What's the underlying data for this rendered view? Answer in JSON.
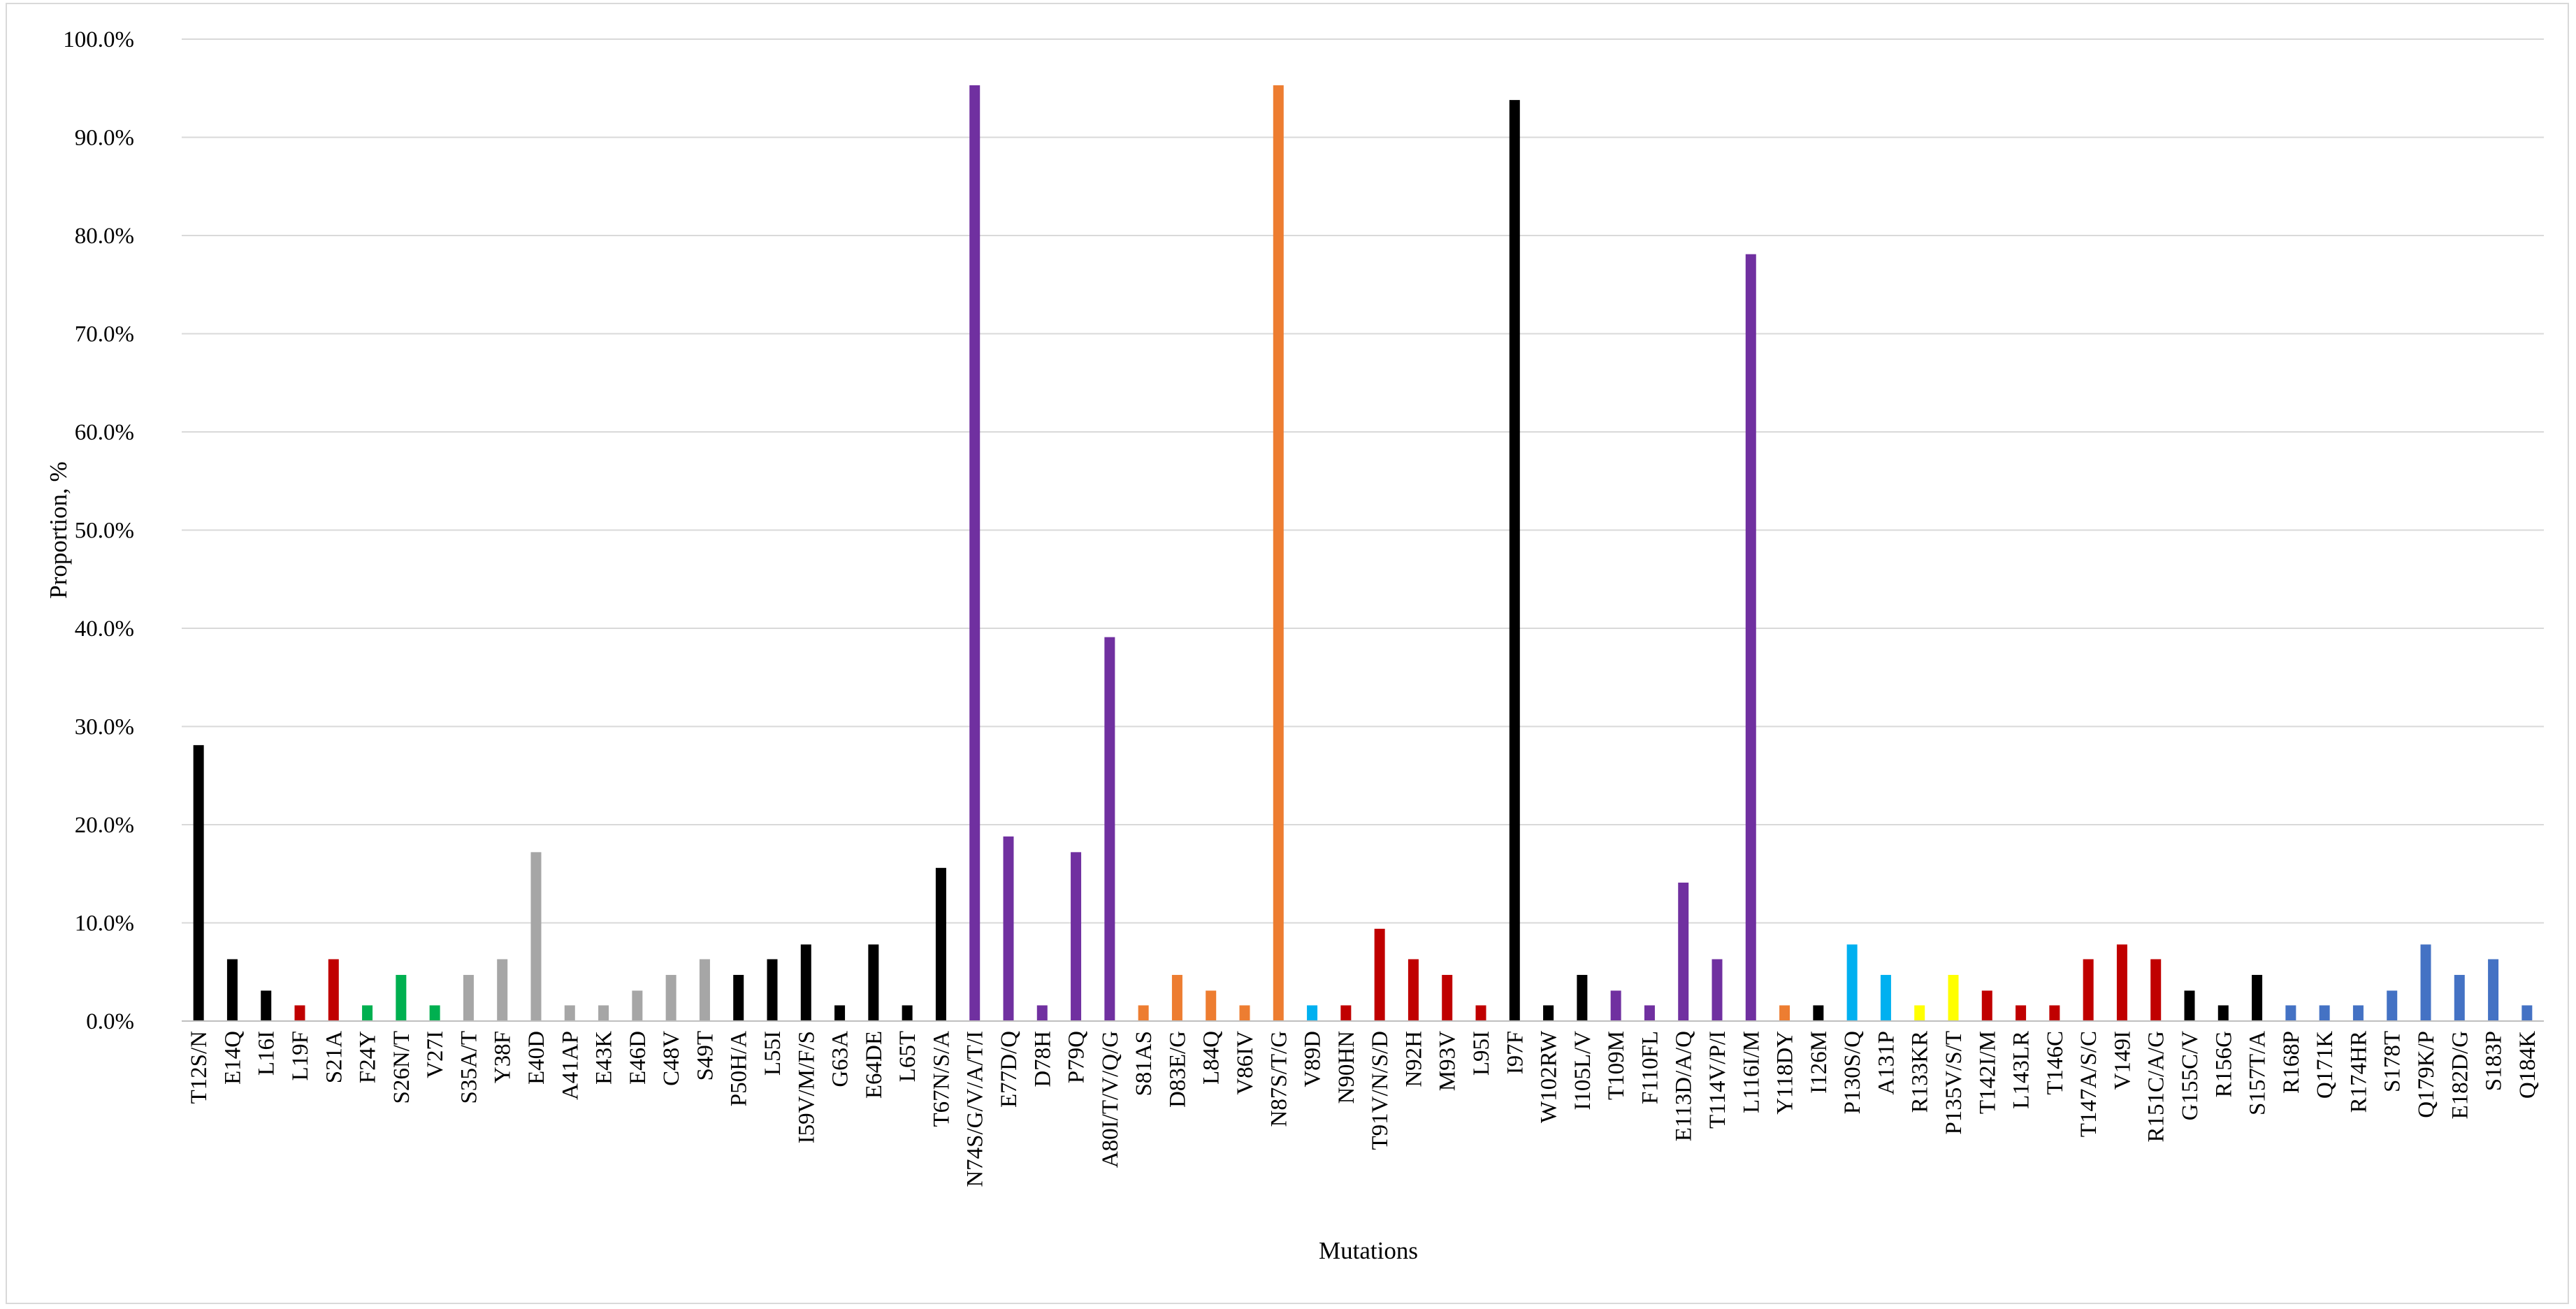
{
  "chart_data": {
    "type": "bar",
    "xlabel": "Mutations",
    "ylabel": "Proportion, %",
    "ylim": [
      0,
      100
    ],
    "y_ticks": [
      "0.0%",
      "10.0%",
      "20.0%",
      "30.0%",
      "40.0%",
      "50.0%",
      "60.0%",
      "70.0%",
      "80.0%",
      "90.0%",
      "100.0%"
    ],
    "grid": true,
    "legend": "none",
    "colors": {
      "black": "#000000",
      "red": "#c00000",
      "green": "#00b050",
      "gray": "#a6a6a6",
      "purple": "#7030a0",
      "orange": "#ed7d31",
      "cyan": "#00b0f0",
      "yellow": "#ffff00",
      "blue": "#4472c4"
    },
    "categories": [
      "T12S/N",
      "E14Q",
      "L16I",
      "L19F",
      "S21A",
      "F24Y",
      "S26N/T",
      "V27I",
      "S35A/T",
      "Y38F",
      "E40D",
      "A41AP",
      "E43K",
      "E46D",
      "C48V",
      "S49T",
      "P50H/A",
      "L55I",
      "I59V/M/F/S",
      "G63A",
      "E64DE",
      "L65T",
      "T67N/S/A",
      "N74S/G/V/A/T/I",
      "E77D/Q",
      "D78H",
      "P79Q",
      "A80I/T/V/Q/G",
      "S81AS",
      "D83E/G",
      "L84Q",
      "V86IV",
      "N87S/T/G",
      "V89D",
      "N90HN",
      "T91V/N/S/D",
      "N92H",
      "M93V",
      "L95I",
      "I97F",
      "W102RW",
      "I105L/V",
      "T109M",
      "F110FL",
      "E113D/A/Q",
      "T114V/P/I",
      "L116I/M",
      "Y118DY",
      "I126M",
      "P130S/Q",
      "A131P",
      "R133KR",
      "P135V/S/T",
      "T142I/M",
      "L143LR",
      "T146C",
      "T147A/S/C",
      "V149I",
      "R151C/A/G",
      "G155C/V",
      "R156G",
      "S157T/A",
      "R168P",
      "Q171K",
      "R174HR",
      "S178T",
      "Q179K/P",
      "E182D/G",
      "S183P",
      "Q184K"
    ],
    "values": [
      28.1,
      6.3,
      3.1,
      1.6,
      6.3,
      1.6,
      4.7,
      1.6,
      4.7,
      6.3,
      17.2,
      1.6,
      1.6,
      3.1,
      4.7,
      6.3,
      4.7,
      6.3,
      7.8,
      1.6,
      7.8,
      1.6,
      15.6,
      95.3,
      18.8,
      1.6,
      17.2,
      39.1,
      1.6,
      4.7,
      3.1,
      1.6,
      95.3,
      1.6,
      1.6,
      9.4,
      6.3,
      4.7,
      1.6,
      93.8,
      1.6,
      4.7,
      3.1,
      1.6,
      14.1,
      6.3,
      78.1,
      1.6,
      1.6,
      7.8,
      4.7,
      1.6,
      4.7,
      3.1,
      1.6,
      1.6,
      6.3,
      7.8,
      6.3,
      3.1,
      1.6,
      4.7,
      1.6,
      1.6,
      1.6,
      3.1,
      7.8,
      4.7,
      6.3,
      1.6
    ],
    "bar_colors": [
      "black",
      "black",
      "black",
      "red",
      "red",
      "green",
      "green",
      "green",
      "gray",
      "gray",
      "gray",
      "gray",
      "gray",
      "gray",
      "gray",
      "gray",
      "black",
      "black",
      "black",
      "black",
      "black",
      "black",
      "black",
      "purple",
      "purple",
      "purple",
      "purple",
      "purple",
      "orange",
      "orange",
      "orange",
      "orange",
      "orange",
      "cyan",
      "red",
      "red",
      "red",
      "red",
      "red",
      "black",
      "black",
      "black",
      "purple",
      "purple",
      "purple",
      "purple",
      "purple",
      "orange",
      "black",
      "cyan",
      "cyan",
      "yellow",
      "yellow",
      "red",
      "red",
      "red",
      "red",
      "red",
      "red",
      "black",
      "black",
      "black",
      "blue",
      "blue",
      "blue",
      "blue",
      "blue",
      "blue",
      "blue",
      "blue"
    ]
  }
}
